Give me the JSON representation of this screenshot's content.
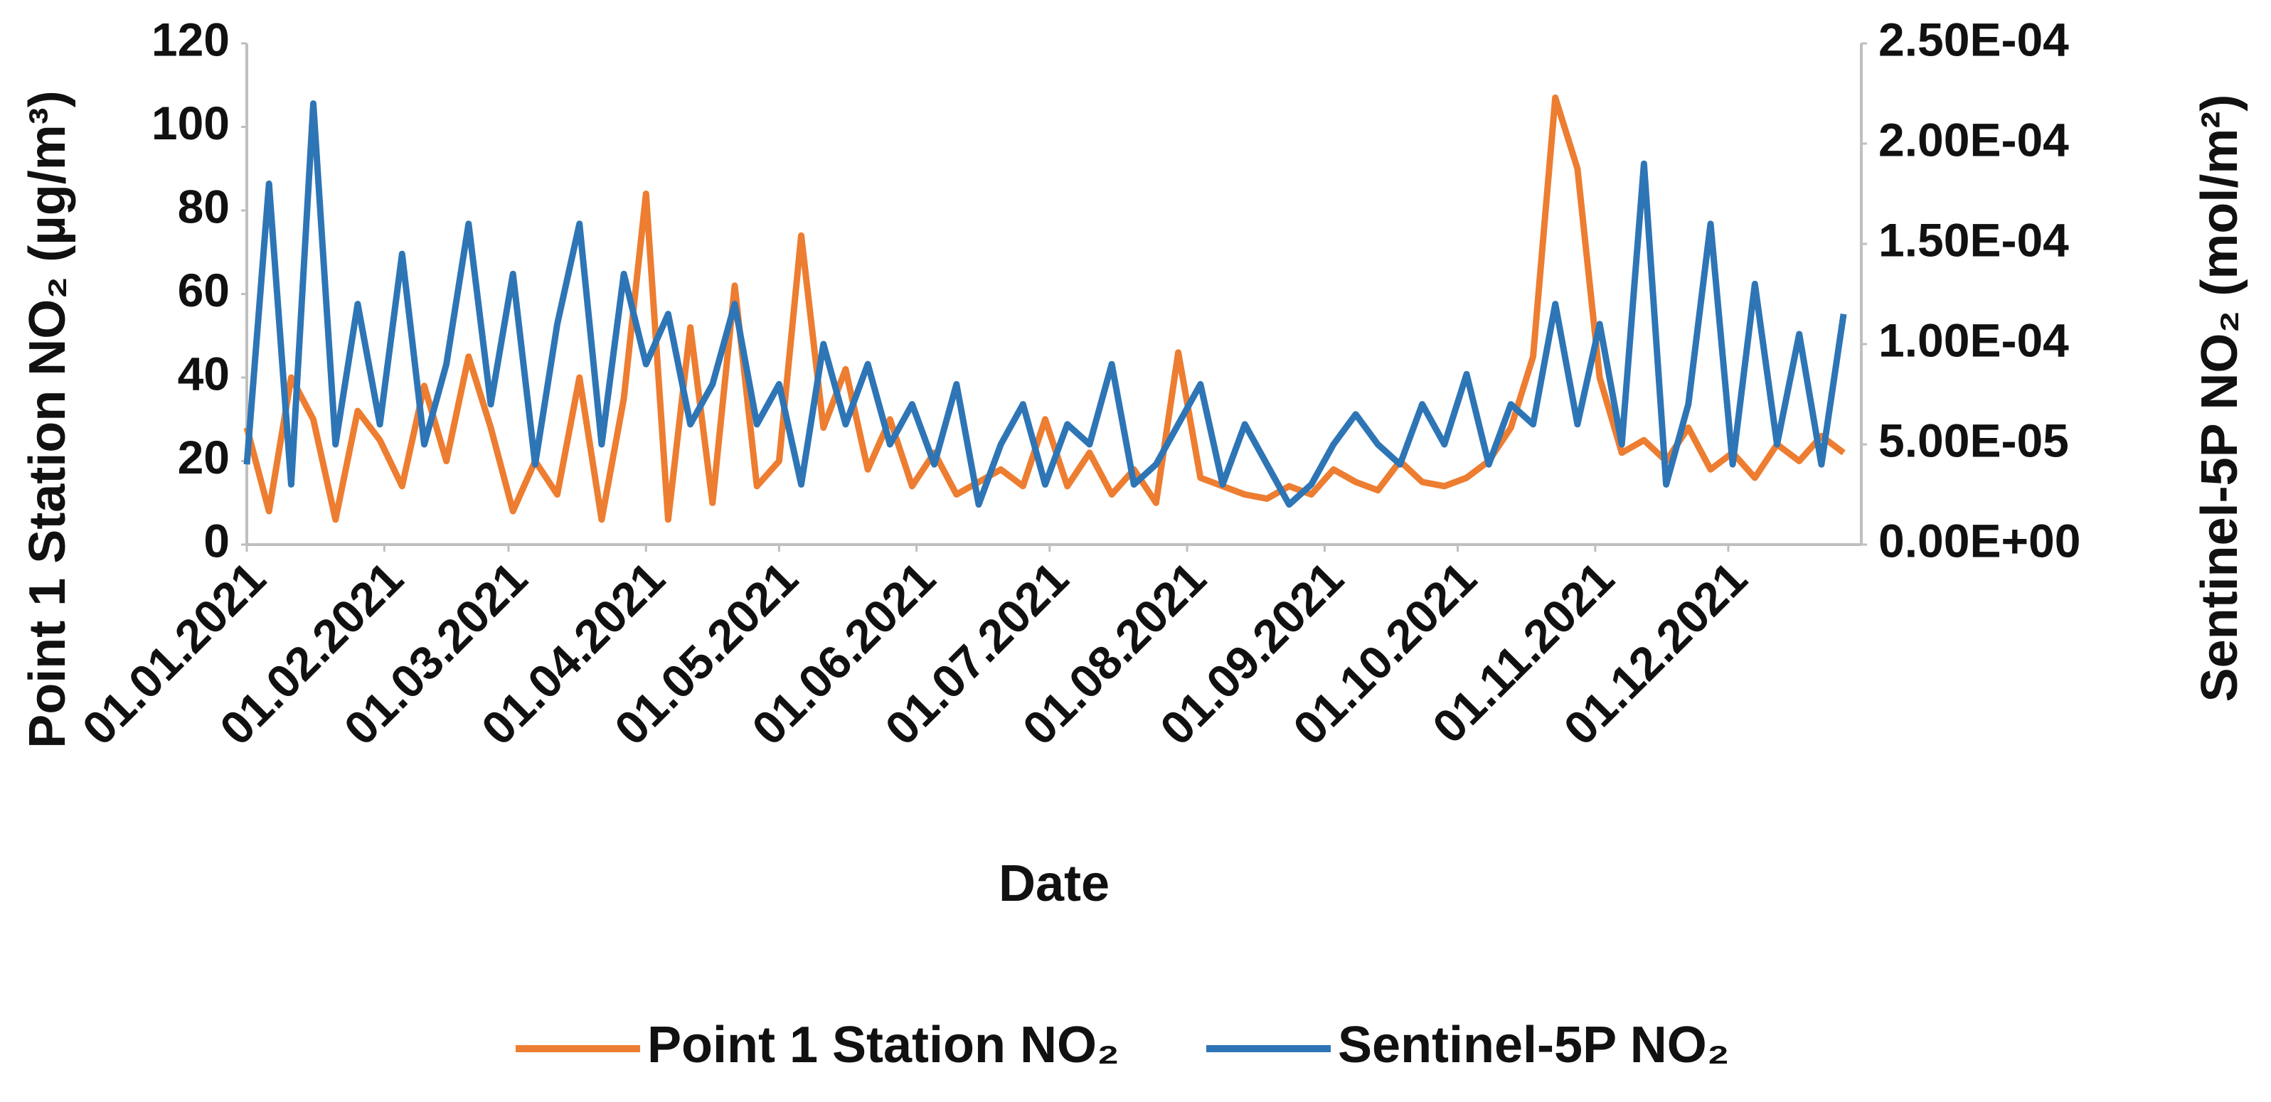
{
  "chart_data": {
    "type": "line",
    "y_label": "Point 1 Station NO₂ (µg/m³)",
    "y2_label": "Sentinel-5P NO₂ (mol/m²)",
    "x_label": "Date",
    "x": [
      "01.01.2021",
      "06.01.2021",
      "11.01.2021",
      "16.01.2021",
      "21.01.2021",
      "26.01.2021",
      "31.01.2021",
      "05.02.2021",
      "10.02.2021",
      "15.02.2021",
      "20.02.2021",
      "25.02.2021",
      "02.03.2021",
      "07.03.2021",
      "12.03.2021",
      "17.03.2021",
      "22.03.2021",
      "27.03.2021",
      "01.04.2021",
      "06.04.2021",
      "11.04.2021",
      "16.04.2021",
      "21.04.2021",
      "26.04.2021",
      "01.05.2021",
      "06.05.2021",
      "11.05.2021",
      "16.05.2021",
      "21.05.2021",
      "26.05.2021",
      "31.05.2021",
      "05.06.2021",
      "10.06.2021",
      "15.06.2021",
      "20.06.2021",
      "25.06.2021",
      "30.06.2021",
      "05.07.2021",
      "10.07.2021",
      "15.07.2021",
      "20.07.2021",
      "25.07.2021",
      "30.07.2021",
      "04.08.2021",
      "09.08.2021",
      "14.08.2021",
      "19.08.2021",
      "24.08.2021",
      "29.08.2021",
      "03.09.2021",
      "08.09.2021",
      "13.09.2021",
      "18.09.2021",
      "23.09.2021",
      "28.09.2021",
      "03.10.2021",
      "08.10.2021",
      "13.10.2021",
      "18.10.2021",
      "23.10.2021",
      "28.10.2021",
      "02.11.2021",
      "07.11.2021",
      "12.11.2021",
      "17.11.2021",
      "22.11.2021",
      "27.11.2021",
      "02.12.2021",
      "07.12.2021",
      "12.12.2021",
      "17.12.2021",
      "22.12.2021",
      "27.12.2021"
    ],
    "xlim": [
      "01.01.2021",
      "31.12.2021"
    ],
    "xticks": [
      "01.01.2021",
      "01.02.2021",
      "01.03.2021",
      "01.04.2021",
      "01.05.2021",
      "01.06.2021",
      "01.07.2021",
      "01.08.2021",
      "01.09.2021",
      "01.10.2021",
      "01.11.2021",
      "01.12.2021"
    ],
    "ylim": [
      0,
      120
    ],
    "yticks": [
      0,
      20,
      40,
      60,
      80,
      100,
      120
    ],
    "y2lim": [
      0,
      0.00025
    ],
    "y2ticks": [
      {
        "value": 0,
        "label": "0.00E+00"
      },
      {
        "value": 5e-05,
        "label": "5.00E-05"
      },
      {
        "value": 0.0001,
        "label": "1.00E-04"
      },
      {
        "value": 0.00015,
        "label": "1.50E-04"
      },
      {
        "value": 0.0002,
        "label": "2.00E-04"
      },
      {
        "value": 0.00025,
        "label": "2.50E-04"
      }
    ],
    "grid": false,
    "legend": "bottom",
    "series": [
      {
        "name": "Point 1 Station NO₂",
        "color": "#ed7d31",
        "axis": "y",
        "values": [
          28,
          8,
          40,
          30,
          6,
          32,
          25,
          14,
          38,
          20,
          45,
          28,
          8,
          20,
          12,
          40,
          6,
          35,
          84,
          6,
          52,
          10,
          62,
          14,
          20,
          74,
          28,
          42,
          18,
          30,
          14,
          22,
          12,
          15,
          18,
          14,
          30,
          14,
          22,
          12,
          18,
          10,
          46,
          16,
          14,
          12,
          11,
          14,
          12,
          18,
          15,
          13,
          20,
          15,
          14,
          16,
          20,
          28,
          45,
          107,
          90,
          40,
          22,
          25,
          20,
          28,
          18,
          22,
          16,
          24,
          20,
          26,
          22
        ]
      },
      {
        "name": "Sentinel-5P NO₂",
        "color": "#2e75b6",
        "axis": "y2",
        "values": [
          4e-05,
          0.00018,
          3e-05,
          0.00022,
          5e-05,
          0.00012,
          6e-05,
          0.000145,
          5e-05,
          9e-05,
          0.00016,
          7e-05,
          0.000135,
          4e-05,
          0.00011,
          0.00016,
          5e-05,
          0.000135,
          9e-05,
          0.000115,
          6e-05,
          8e-05,
          0.00012,
          6e-05,
          8e-05,
          3e-05,
          0.0001,
          6e-05,
          9e-05,
          5e-05,
          7e-05,
          4e-05,
          8e-05,
          2e-05,
          5e-05,
          7e-05,
          3e-05,
          6e-05,
          5e-05,
          9e-05,
          3e-05,
          4e-05,
          6e-05,
          8e-05,
          3e-05,
          6e-05,
          4e-05,
          2e-05,
          3e-05,
          5e-05,
          6.5e-05,
          5e-05,
          4e-05,
          7e-05,
          5e-05,
          8.5e-05,
          4e-05,
          7e-05,
          6e-05,
          0.00012,
          6e-05,
          0.00011,
          5e-05,
          0.00019,
          3e-05,
          7e-05,
          0.00016,
          4e-05,
          0.00013,
          5e-05,
          0.000105,
          4e-05,
          0.000115
        ]
      }
    ]
  }
}
